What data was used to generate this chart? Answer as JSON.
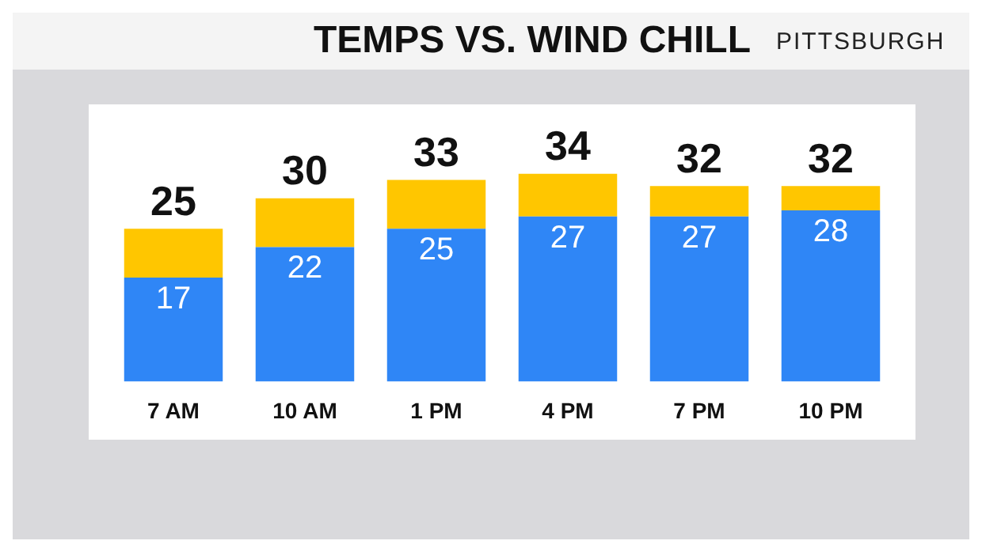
{
  "chart_data": {
    "type": "bar",
    "title": "TEMPS VS. WIND CHILL",
    "subtitle": "PITTSBURGH",
    "categories": [
      "7 AM",
      "10 AM",
      "1 PM",
      "4 PM",
      "7 PM",
      "10 PM"
    ],
    "stacked": true,
    "series": [
      {
        "color": "#2f86f6",
        "values": [
          17,
          22,
          25,
          27,
          27,
          28
        ],
        "value_labels": [
          "17",
          "22",
          "25",
          "27",
          "27",
          "28"
        ]
      },
      {
        "color": "#ffc600",
        "values": [
          8,
          8,
          8,
          7,
          5,
          4
        ]
      }
    ],
    "totals": [
      "25",
      "30",
      "33",
      "34",
      "32",
      "32"
    ],
    "grid": false,
    "legend": false
  }
}
